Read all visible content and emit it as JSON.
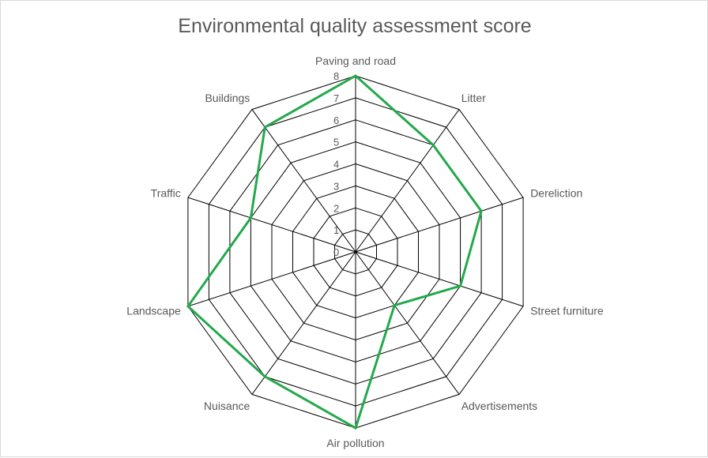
{
  "chart_data": {
    "type": "radar",
    "title": "Environmental quality assessment score",
    "categories": [
      "Paving and road",
      "Litter",
      "Dereliction",
      "Street furniture",
      "Advertisements",
      "Air pollution",
      "Nuisance",
      "Landscape",
      "Traffic",
      "Buildings"
    ],
    "series": [
      {
        "values": [
          8,
          6,
          6,
          5,
          3,
          8,
          7,
          8,
          5,
          7
        ],
        "color": "#22a94b"
      }
    ],
    "rlim": [
      0,
      8
    ],
    "ticks": [
      "0",
      "1",
      "2",
      "3",
      "4",
      "5",
      "6",
      "7",
      "8"
    ],
    "grid": true,
    "legend": "none"
  }
}
